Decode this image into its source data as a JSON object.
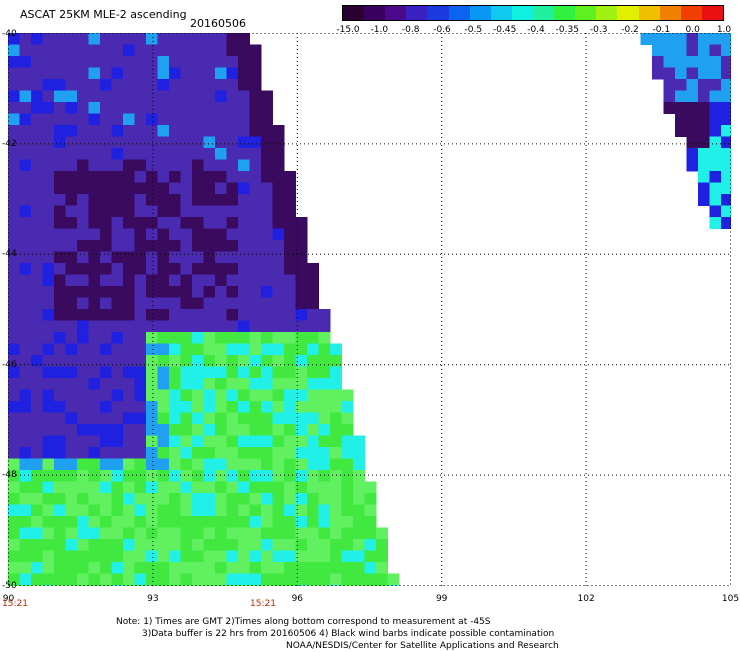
{
  "header": {
    "title": "ASCAT 25KM MLE-2 ascending",
    "date": "20160506"
  },
  "colorbar": {
    "labels": [
      "-15.0",
      "-1.0",
      "-0.8",
      "-0.6",
      "-0.5",
      "-0.45",
      "-0.4",
      "-0.35",
      "-0.3",
      "-0.2",
      "-0.1",
      "0.0",
      "1.0"
    ],
    "colors": [
      "#2a0033",
      "#3a0060",
      "#4a0a8a",
      "#3a20c0",
      "#1a3ae0",
      "#0a64f0",
      "#0a96f5",
      "#10c8f0",
      "#10f0e0",
      "#20f0a0",
      "#30f040",
      "#60f020",
      "#a0f010",
      "#e0f000",
      "#f0c000",
      "#f08000",
      "#f04000",
      "#e81010"
    ]
  },
  "axes": {
    "x_ticks": [
      "90",
      "93",
      "96",
      "99",
      "102",
      "105"
    ],
    "y_ticks": [
      "-40",
      "-42",
      "-44",
      "-46",
      "-48",
      "-50"
    ],
    "x_range": [
      90,
      105
    ],
    "y_range": [
      -50,
      -40
    ]
  },
  "time_labels": [
    "15:21",
    "15:21"
  ],
  "note": {
    "line1": "Note: 1) Times are GMT 2)Times along bottom correspond to measurement at -45S",
    "line2": "3)Data buffer is 22 hrs from 20160506 4) Black wind barbs indicate possible contamination",
    "line3": "NOAA/NESDIS/Center for Satellite Applications and Research"
  },
  "palette": {
    "deep_purple": "#3a0a5e",
    "purple": "#4a2ab0",
    "blue": "#2020e0",
    "light_blue": "#20a0f0",
    "cyan": "#20f0e8",
    "green": "#40e840",
    "light_green": "#60f060"
  }
}
